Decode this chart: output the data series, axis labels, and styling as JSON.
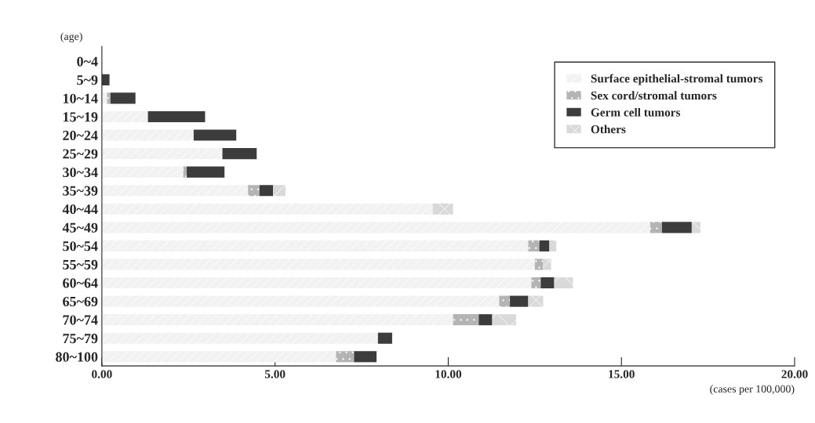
{
  "chart_data": {
    "type": "bar",
    "orientation": "horizontal",
    "stacked": true,
    "categories": [
      "0~4",
      "5~9",
      "10~14",
      "15~19",
      "20~24",
      "25~29",
      "30~34",
      "35~39",
      "40~44",
      "45~49",
      "50~54",
      "55~59",
      "60~64",
      "65~69",
      "70~74",
      "75~79",
      "80~100"
    ],
    "series": [
      {
        "name": "Surface epithelial-stromal tumors",
        "color": "#f2f2f2",
        "values": [
          null,
          null,
          0.15,
          1.33,
          2.65,
          3.48,
          2.35,
          4.22,
          9.55,
          15.83,
          12.31,
          12.5,
          12.4,
          11.47,
          10.14,
          7.97,
          6.76
        ]
      },
      {
        "name": "Sex cord/stromal tumors",
        "color": "#b4b4b4",
        "values": [
          null,
          null,
          0.1,
          null,
          null,
          null,
          0.1,
          0.33,
          null,
          0.34,
          0.32,
          0.23,
          0.27,
          0.31,
          0.74,
          null,
          0.52
        ]
      },
      {
        "name": "Germ cell tumors",
        "color": "#3c3c3c",
        "values": [
          null,
          0.22,
          0.72,
          1.65,
          1.23,
          0.99,
          1.09,
          0.39,
          null,
          0.86,
          0.29,
          null,
          0.39,
          0.53,
          0.39,
          0.41,
          0.65
        ]
      },
      {
        "name": "Others",
        "color": "#d9d9d9",
        "values": [
          null,
          null,
          null,
          null,
          null,
          null,
          null,
          0.36,
          0.59,
          0.25,
          0.2,
          0.24,
          0.54,
          0.43,
          0.69,
          null,
          null
        ]
      }
    ],
    "xlim": [
      0,
      20
    ],
    "xticks": [
      {
        "value": 0,
        "label": "0.00"
      },
      {
        "value": 5,
        "label": "5.00"
      },
      {
        "value": 10,
        "label": "10.00"
      },
      {
        "value": 15,
        "label": "15.00"
      },
      {
        "value": 20,
        "label": "20.00"
      }
    ],
    "xlabel": "(cases per 100,000)",
    "ylabel": "(age)",
    "legend": "top right",
    "grid": false
  }
}
